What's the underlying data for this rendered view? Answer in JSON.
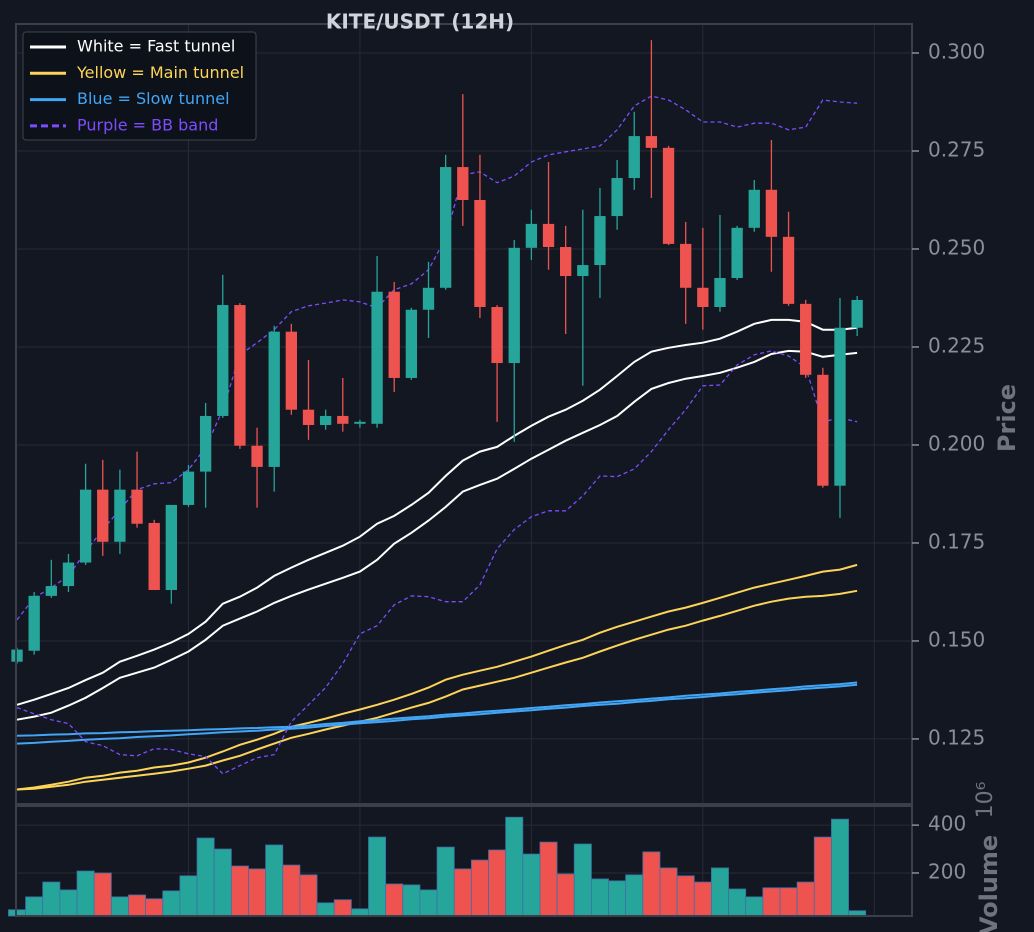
{
  "chart_data": [
    {
      "type": "candlestick",
      "title": "KITE/USDT (12H)",
      "ylabel": "Price",
      "up_color": "#26a69a",
      "down_color": "#ef5350",
      "x": [
        0,
        1,
        2,
        3,
        4,
        5,
        6,
        7,
        8,
        9,
        10,
        11,
        12,
        13,
        14,
        15,
        16,
        17,
        18,
        19,
        20,
        21,
        22,
        23,
        24,
        25,
        26,
        27,
        28,
        29,
        30,
        31,
        32,
        33,
        34,
        35,
        36,
        37,
        38,
        39,
        40,
        41,
        42,
        43,
        44,
        45,
        46,
        47,
        48,
        49
      ],
      "xlim": [
        -0.06,
        52.2
      ],
      "xgrid": [
        10,
        20,
        30,
        40,
        50
      ],
      "open": [
        0.1447,
        0.1475,
        0.1615,
        0.164,
        0.17,
        0.1886,
        0.1753,
        0.1886,
        0.1801,
        0.163,
        0.1847,
        0.1932,
        0.2074,
        0.2357,
        0.1998,
        0.1944,
        0.2289,
        0.209,
        0.2051,
        0.2074,
        0.2054,
        0.2054,
        0.2391,
        0.2171,
        0.2345,
        0.2401,
        0.2709,
        0.2625,
        0.2352,
        0.2209,
        0.2503,
        0.2564,
        0.2505,
        0.2431,
        0.2459,
        0.2584,
        0.2681,
        0.2788,
        0.2758,
        0.2513,
        0.2401,
        0.2352,
        0.2426,
        0.2554,
        0.2651,
        0.2531,
        0.236,
        0.2179,
        0.1896,
        0.2299
      ],
      "high": [
        0.1483,
        0.1625,
        0.1707,
        0.1722,
        0.1952,
        0.1962,
        0.1937,
        0.1983,
        0.1809,
        0.1847,
        0.1949,
        0.2107,
        0.2434,
        0.2362,
        0.2044,
        0.2304,
        0.2309,
        0.2217,
        0.209,
        0.2171,
        0.2064,
        0.2482,
        0.2416,
        0.235,
        0.2467,
        0.274,
        0.2895,
        0.274,
        0.2357,
        0.2523,
        0.26,
        0.2722,
        0.2559,
        0.26,
        0.2656,
        0.2727,
        0.285,
        0.3033,
        0.2763,
        0.2569,
        0.2554,
        0.2587,
        0.2559,
        0.2676,
        0.2778,
        0.2595,
        0.237,
        0.2197,
        0.2375,
        0.238
      ],
      "low": [
        0.1442,
        0.1465,
        0.161,
        0.1625,
        0.1694,
        0.1717,
        0.1722,
        0.1789,
        0.163,
        0.1595,
        0.1842,
        0.184,
        0.2069,
        0.199,
        0.184,
        0.1881,
        0.2077,
        0.2013,
        0.2039,
        0.2034,
        0.2044,
        0.2044,
        0.2135,
        0.2166,
        0.2273,
        0.2396,
        0.2559,
        0.2324,
        0.2059,
        0.2008,
        0.2472,
        0.2447,
        0.2283,
        0.2151,
        0.2375,
        0.2549,
        0.2651,
        0.263,
        0.251,
        0.2309,
        0.2294,
        0.234,
        0.2421,
        0.2544,
        0.2442,
        0.2355,
        0.2171,
        0.1891,
        0.1814,
        0.2278
      ],
      "close": [
        0.1478,
        0.1615,
        0.164,
        0.17,
        0.1886,
        0.1753,
        0.1886,
        0.1799,
        0.163,
        0.1847,
        0.1932,
        0.2074,
        0.2357,
        0.1998,
        0.1944,
        0.2289,
        0.209,
        0.2051,
        0.2074,
        0.2054,
        0.2059,
        0.2391,
        0.2171,
        0.2345,
        0.2401,
        0.2709,
        0.2625,
        0.2352,
        0.2209,
        0.2503,
        0.2564,
        0.2505,
        0.2431,
        0.2459,
        0.2584,
        0.2681,
        0.2788,
        0.2758,
        0.2513,
        0.2401,
        0.2352,
        0.2426,
        0.2554,
        0.2651,
        0.2531,
        0.236,
        0.2179,
        0.1896,
        0.2299,
        0.237
      ],
      "ylim": [
        0.1084,
        0.3074
      ],
      "yticks": [
        0.125,
        {
          "value": 0.15,
          "label": "0.150"
        },
        0.175,
        {
          "value": 0.2,
          "label": "0.200"
        },
        0.225,
        {
          "value": 0.25,
          "label": "0.250"
        },
        0.275,
        {
          "value": 0.3,
          "label": "0.300"
        }
      ],
      "legend": "upper left",
      "series": [
        {
          "name": "White = Fast tunnel",
          "color": "#ffffff",
          "dashed": false,
          "upper": [
            0.1337,
            0.135,
            0.1365,
            0.138,
            0.14,
            0.1419,
            0.1447,
            0.1462,
            0.1478,
            0.1496,
            0.1518,
            0.1549,
            0.1595,
            0.1613,
            0.1636,
            0.1666,
            0.1687,
            0.1707,
            0.1725,
            0.1743,
            0.1766,
            0.1799,
            0.1819,
            0.1847,
            0.1878,
            0.1921,
            0.196,
            0.1983,
            0.1995,
            0.2023,
            0.2049,
            0.2072,
            0.209,
            0.2113,
            0.2141,
            0.2176,
            0.2212,
            0.2238,
            0.2248,
            0.2255,
            0.2261,
            0.2271,
            0.2289,
            0.2309,
            0.2319,
            0.2319,
            0.2314,
            0.2294,
            0.2294,
            0.2299
          ],
          "lower": [
            0.1299,
            0.1307,
            0.1317,
            0.1335,
            0.1355,
            0.138,
            0.1406,
            0.1419,
            0.1432,
            0.1452,
            0.1473,
            0.1503,
            0.1539,
            0.1557,
            0.1575,
            0.1597,
            0.1615,
            0.1631,
            0.1646,
            0.1661,
            0.1677,
            0.1707,
            0.1748,
            0.1776,
            0.1807,
            0.1842,
            0.1881,
            0.1898,
            0.1914,
            0.1939,
            0.1965,
            0.1988,
            0.2011,
            0.2031,
            0.2051,
            0.2074,
            0.211,
            0.2143,
            0.2158,
            0.2169,
            0.2176,
            0.2184,
            0.2197,
            0.2212,
            0.2232,
            0.224,
            0.2238,
            0.2225,
            0.223,
            0.2235
          ]
        },
        {
          "name": "Yellow = Main tunnel",
          "color": "#fdd458",
          "dashed": false,
          "upper": [
            0.1121,
            0.1126,
            0.1133,
            0.1141,
            0.1151,
            0.1156,
            0.1164,
            0.1169,
            0.1177,
            0.1182,
            0.119,
            0.1202,
            0.1218,
            0.1235,
            0.1248,
            0.1263,
            0.1281,
            0.1291,
            0.1302,
            0.1314,
            0.1325,
            0.1337,
            0.135,
            0.1365,
            0.1381,
            0.1401,
            0.1414,
            0.1424,
            0.1434,
            0.1447,
            0.146,
            0.1475,
            0.149,
            0.1503,
            0.1521,
            0.1536,
            0.1549,
            0.1562,
            0.1575,
            0.1585,
            0.1597,
            0.161,
            0.1623,
            0.1636,
            0.1646,
            0.1656,
            0.1666,
            0.1677,
            0.1682,
            0.1694
          ],
          "lower": [
            0.1121,
            0.1123,
            0.1128,
            0.1133,
            0.1141,
            0.1146,
            0.1151,
            0.1156,
            0.1161,
            0.1167,
            0.1174,
            0.1182,
            0.1195,
            0.1207,
            0.1223,
            0.1238,
            0.1253,
            0.1263,
            0.1274,
            0.1284,
            0.1294,
            0.1304,
            0.1317,
            0.133,
            0.1342,
            0.1358,
            0.1376,
            0.1386,
            0.1396,
            0.1406,
            0.1419,
            0.1432,
            0.1445,
            0.1457,
            0.1473,
            0.1488,
            0.1503,
            0.1516,
            0.1529,
            0.1539,
            0.1552,
            0.1564,
            0.1577,
            0.159,
            0.16,
            0.1608,
            0.1613,
            0.1615,
            0.162,
            0.1628
          ]
        },
        {
          "name": "Blue = Slow tunnel",
          "color": "#42a5f5",
          "dashed": false,
          "upper": [
            0.1258,
            0.1259,
            0.1261,
            0.1262,
            0.1264,
            0.1265,
            0.1267,
            0.1268,
            0.127,
            0.1271,
            0.1272,
            0.1274,
            0.1275,
            0.1277,
            0.1278,
            0.128,
            0.1281,
            0.1284,
            0.1288,
            0.1291,
            0.1295,
            0.1298,
            0.1302,
            0.1305,
            0.1308,
            0.1312,
            0.1315,
            0.1319,
            0.1322,
            0.1325,
            0.1329,
            0.1332,
            0.1336,
            0.1339,
            0.1343,
            0.1346,
            0.1349,
            0.1353,
            0.1356,
            0.136,
            0.1363,
            0.1366,
            0.137,
            0.1373,
            0.1377,
            0.138,
            0.1384,
            0.1387,
            0.139,
            0.1394
          ],
          "lower": [
            0.1238,
            0.124,
            0.1243,
            0.1245,
            0.1248,
            0.125,
            0.1252,
            0.1255,
            0.1257,
            0.1259,
            0.1262,
            0.1264,
            0.1267,
            0.1269,
            0.1271,
            0.1274,
            0.1276,
            0.1279,
            0.1283,
            0.1286,
            0.129,
            0.1293,
            0.1296,
            0.13,
            0.1303,
            0.1307,
            0.131,
            0.1313,
            0.1317,
            0.132,
            0.1323,
            0.1327,
            0.133,
            0.1334,
            0.1337,
            0.134,
            0.1344,
            0.1347,
            0.1351,
            0.1354,
            0.1357,
            0.1361,
            0.1364,
            0.1368,
            0.1371,
            0.1374,
            0.1378,
            0.1381,
            0.1384,
            0.1388
          ]
        },
        {
          "name": "Purple = BB band",
          "color": "#7c4dff",
          "dashed": true,
          "upper": [
            0.1554,
            0.161,
            0.1636,
            0.1666,
            0.1728,
            0.1784,
            0.1835,
            0.1886,
            0.1901,
            0.1904,
            0.1937,
            0.1993,
            0.209,
            0.223,
            0.2261,
            0.2294,
            0.234,
            0.2355,
            0.2362,
            0.237,
            0.2365,
            0.235,
            0.2396,
            0.2411,
            0.2447,
            0.2528,
            0.2689,
            0.2697,
            0.2669,
            0.2686,
            0.2722,
            0.274,
            0.2748,
            0.2755,
            0.2763,
            0.2804,
            0.2865,
            0.289,
            0.288,
            0.2855,
            0.2824,
            0.2824,
            0.2811,
            0.2821,
            0.2821,
            0.2804,
            0.2811,
            0.288,
            0.2875,
            0.2872
          ],
          "lower": [
            0.133,
            0.1314,
            0.1299,
            0.1289,
            0.1243,
            0.1233,
            0.121,
            0.1207,
            0.1225,
            0.1223,
            0.1212,
            0.1205,
            0.1161,
            0.1182,
            0.1202,
            0.121,
            0.1294,
            0.1337,
            0.1381,
            0.1442,
            0.1518,
            0.1539,
            0.1592,
            0.1615,
            0.1613,
            0.16,
            0.16,
            0.1643,
            0.1735,
            0.1784,
            0.1817,
            0.1832,
            0.1832,
            0.187,
            0.1921,
            0.1919,
            0.1939,
            0.1983,
            0.2039,
            0.209,
            0.2151,
            0.2153,
            0.2204,
            0.223,
            0.224,
            0.2227,
            0.2197,
            0.2059,
            0.2069,
            0.2059
          ]
        }
      ]
    },
    {
      "type": "bar",
      "ylabel": "Volume",
      "offset_label": "10⁶",
      "values": [
        46,
        100,
        162,
        129,
        208,
        200,
        100,
        108,
        92,
        125,
        188,
        346,
        300,
        229,
        217,
        317,
        233,
        192,
        75,
        88,
        50,
        350,
        154,
        150,
        129,
        308,
        217,
        254,
        296,
        433,
        279,
        329,
        196,
        321,
        175,
        167,
        192,
        288,
        221,
        188,
        162,
        221,
        133,
        100,
        138,
        138,
        162,
        350,
        425,
        42
      ],
      "ylim": [
        20,
        480
      ],
      "yticks": [
        200,
        400
      ]
    }
  ]
}
